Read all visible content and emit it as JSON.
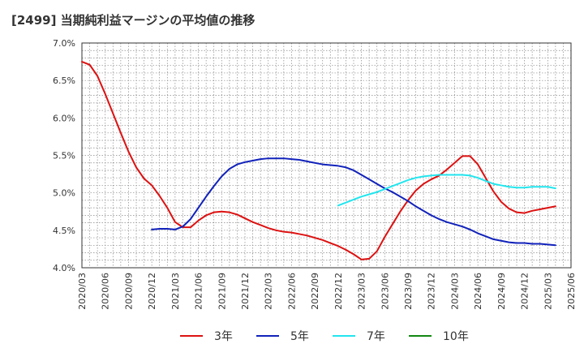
{
  "title": "[2499]  当期純利益マージンの平均値の推移",
  "chart_data": {
    "type": "line",
    "title": "[2499]  当期純利益マージンの平均値の推移",
    "xlabel": "",
    "ylabel": "",
    "ylim": [
      4.0,
      7.0
    ],
    "yticks": [
      "4.0%",
      "4.5%",
      "5.0%",
      "5.5%",
      "6.0%",
      "6.5%",
      "7.0%"
    ],
    "xlim": [
      "2020-03",
      "2025-06"
    ],
    "xticks": [
      "2020/03",
      "2020/06",
      "2020/09",
      "2020/12",
      "2021/03",
      "2021/06",
      "2021/09",
      "2021/12",
      "2022/03",
      "2022/06",
      "2022/09",
      "2022/12",
      "2023/03",
      "2023/06",
      "2023/09",
      "2023/12",
      "2024/03",
      "2024/06",
      "2024/09",
      "2024/12",
      "2025/03",
      "2025/06"
    ],
    "grid": true,
    "legend_position": "bottom",
    "series": [
      {
        "name": "3年",
        "color": "#dd1111",
        "points": [
          [
            "2020-03",
            6.75
          ],
          [
            "2020-04",
            6.71
          ],
          [
            "2020-05",
            6.56
          ],
          [
            "2020-06",
            6.32
          ],
          [
            "2020-07",
            6.06
          ],
          [
            "2020-08",
            5.8
          ],
          [
            "2020-09",
            5.55
          ],
          [
            "2020-10",
            5.34
          ],
          [
            "2020-11",
            5.19
          ],
          [
            "2020-12",
            5.1
          ],
          [
            "2021-01",
            4.96
          ],
          [
            "2021-02",
            4.8
          ],
          [
            "2021-03",
            4.61
          ],
          [
            "2021-04",
            4.54
          ],
          [
            "2021-05",
            4.54
          ],
          [
            "2021-06",
            4.63
          ],
          [
            "2021-07",
            4.7
          ],
          [
            "2021-08",
            4.74
          ],
          [
            "2021-09",
            4.75
          ],
          [
            "2021-10",
            4.74
          ],
          [
            "2021-11",
            4.71
          ],
          [
            "2021-12",
            4.66
          ],
          [
            "2022-01",
            4.61
          ],
          [
            "2022-02",
            4.57
          ],
          [
            "2022-03",
            4.53
          ],
          [
            "2022-04",
            4.5
          ],
          [
            "2022-05",
            4.48
          ],
          [
            "2022-06",
            4.47
          ],
          [
            "2022-07",
            4.45
          ],
          [
            "2022-08",
            4.43
          ],
          [
            "2022-09",
            4.4
          ],
          [
            "2022-10",
            4.37
          ],
          [
            "2022-11",
            4.33
          ],
          [
            "2022-12",
            4.29
          ],
          [
            "2023-01",
            4.24
          ],
          [
            "2023-02",
            4.18
          ],
          [
            "2023-03",
            4.11
          ],
          [
            "2023-04",
            4.12
          ],
          [
            "2023-05",
            4.22
          ],
          [
            "2023-06",
            4.41
          ],
          [
            "2023-07",
            4.58
          ],
          [
            "2023-08",
            4.75
          ],
          [
            "2023-09",
            4.9
          ],
          [
            "2023-10",
            5.03
          ],
          [
            "2023-11",
            5.12
          ],
          [
            "2023-12",
            5.18
          ],
          [
            "2024-01",
            5.23
          ],
          [
            "2024-02",
            5.31
          ],
          [
            "2024-03",
            5.4
          ],
          [
            "2024-04",
            5.49
          ],
          [
            "2024-05",
            5.49
          ],
          [
            "2024-06",
            5.38
          ],
          [
            "2024-07",
            5.2
          ],
          [
            "2024-08",
            5.02
          ],
          [
            "2024-09",
            4.88
          ],
          [
            "2024-10",
            4.79
          ],
          [
            "2024-11",
            4.74
          ],
          [
            "2024-12",
            4.73
          ],
          [
            "2025-01",
            4.76
          ],
          [
            "2025-02",
            4.78
          ],
          [
            "2025-03",
            4.8
          ],
          [
            "2025-04",
            4.82
          ]
        ]
      },
      {
        "name": "5年",
        "color": "#1122bb",
        "points": [
          [
            "2020-12",
            4.51
          ],
          [
            "2021-01",
            4.52
          ],
          [
            "2021-02",
            4.52
          ],
          [
            "2021-03",
            4.51
          ],
          [
            "2021-04",
            4.55
          ],
          [
            "2021-05",
            4.65
          ],
          [
            "2021-06",
            4.8
          ],
          [
            "2021-07",
            4.95
          ],
          [
            "2021-08",
            5.09
          ],
          [
            "2021-09",
            5.22
          ],
          [
            "2021-10",
            5.32
          ],
          [
            "2021-11",
            5.38
          ],
          [
            "2021-12",
            5.41
          ],
          [
            "2022-01",
            5.43
          ],
          [
            "2022-02",
            5.45
          ],
          [
            "2022-03",
            5.46
          ],
          [
            "2022-04",
            5.46
          ],
          [
            "2022-05",
            5.46
          ],
          [
            "2022-06",
            5.45
          ],
          [
            "2022-07",
            5.44
          ],
          [
            "2022-08",
            5.42
          ],
          [
            "2022-09",
            5.4
          ],
          [
            "2022-10",
            5.38
          ],
          [
            "2022-11",
            5.37
          ],
          [
            "2022-12",
            5.36
          ],
          [
            "2023-01",
            5.34
          ],
          [
            "2023-02",
            5.3
          ],
          [
            "2023-03",
            5.24
          ],
          [
            "2023-04",
            5.18
          ],
          [
            "2023-05",
            5.12
          ],
          [
            "2023-06",
            5.06
          ],
          [
            "2023-07",
            5.01
          ],
          [
            "2023-08",
            4.95
          ],
          [
            "2023-09",
            4.89
          ],
          [
            "2023-10",
            4.82
          ],
          [
            "2023-11",
            4.76
          ],
          [
            "2023-12",
            4.7
          ],
          [
            "2024-01",
            4.65
          ],
          [
            "2024-02",
            4.61
          ],
          [
            "2024-03",
            4.58
          ],
          [
            "2024-04",
            4.55
          ],
          [
            "2024-05",
            4.51
          ],
          [
            "2024-06",
            4.46
          ],
          [
            "2024-07",
            4.42
          ],
          [
            "2024-08",
            4.38
          ],
          [
            "2024-09",
            4.36
          ],
          [
            "2024-10",
            4.34
          ],
          [
            "2024-11",
            4.33
          ],
          [
            "2024-12",
            4.33
          ],
          [
            "2025-01",
            4.32
          ],
          [
            "2025-02",
            4.32
          ],
          [
            "2025-03",
            4.31
          ],
          [
            "2025-04",
            4.3
          ]
        ]
      },
      {
        "name": "7年",
        "color": "#22e5ee",
        "points": [
          [
            "2022-12",
            4.83
          ],
          [
            "2023-01",
            4.87
          ],
          [
            "2023-02",
            4.91
          ],
          [
            "2023-03",
            4.95
          ],
          [
            "2023-04",
            4.98
          ],
          [
            "2023-05",
            5.01
          ],
          [
            "2023-06",
            5.05
          ],
          [
            "2023-07",
            5.09
          ],
          [
            "2023-08",
            5.13
          ],
          [
            "2023-09",
            5.17
          ],
          [
            "2023-10",
            5.2
          ],
          [
            "2023-11",
            5.22
          ],
          [
            "2023-12",
            5.23
          ],
          [
            "2024-01",
            5.24
          ],
          [
            "2024-02",
            5.24
          ],
          [
            "2024-03",
            5.24
          ],
          [
            "2024-04",
            5.24
          ],
          [
            "2024-05",
            5.23
          ],
          [
            "2024-06",
            5.2
          ],
          [
            "2024-07",
            5.16
          ],
          [
            "2024-08",
            5.12
          ],
          [
            "2024-09",
            5.1
          ],
          [
            "2024-10",
            5.08
          ],
          [
            "2024-11",
            5.07
          ],
          [
            "2024-12",
            5.07
          ],
          [
            "2025-01",
            5.08
          ],
          [
            "2025-02",
            5.08
          ],
          [
            "2025-03",
            5.08
          ],
          [
            "2025-04",
            5.06
          ]
        ]
      },
      {
        "name": "10年",
        "color": "#118811",
        "points": []
      }
    ]
  }
}
